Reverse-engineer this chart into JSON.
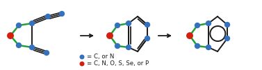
{
  "blue": "#3472c0",
  "red": "#d42010",
  "green": "#20a030",
  "black": "#1a1a1a",
  "bg": "#ffffff",
  "legend_blue_label": "= C, or N",
  "legend_red_label": "= C, N, O, S, Se, or P"
}
